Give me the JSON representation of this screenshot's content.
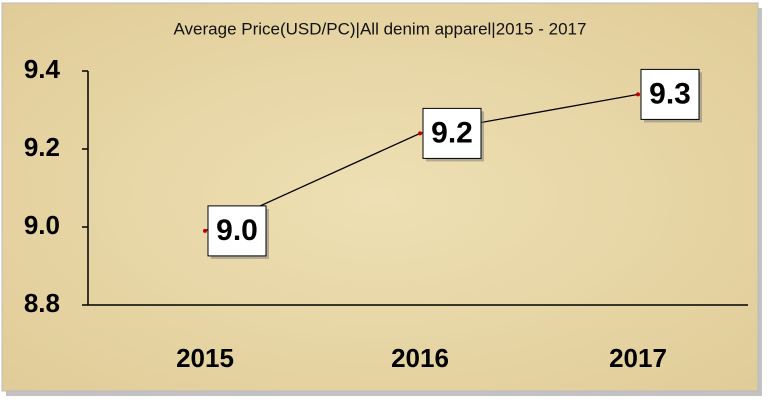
{
  "chart_data": {
    "type": "line",
    "title": "Average Price(USD/PC)|All denim apparel|2015 - 2017",
    "categories": [
      "2015",
      "2016",
      "2017"
    ],
    "values": [
      8.99,
      9.24,
      9.34
    ],
    "value_labels": [
      "9.0",
      "9.2",
      "9.3"
    ],
    "color": "#000000",
    "ylim": [
      8.8,
      9.4
    ],
    "yticks": [
      8.8,
      {
        "value": 9,
        "label": "9.0"
      },
      9.2,
      9.4
    ]
  }
}
